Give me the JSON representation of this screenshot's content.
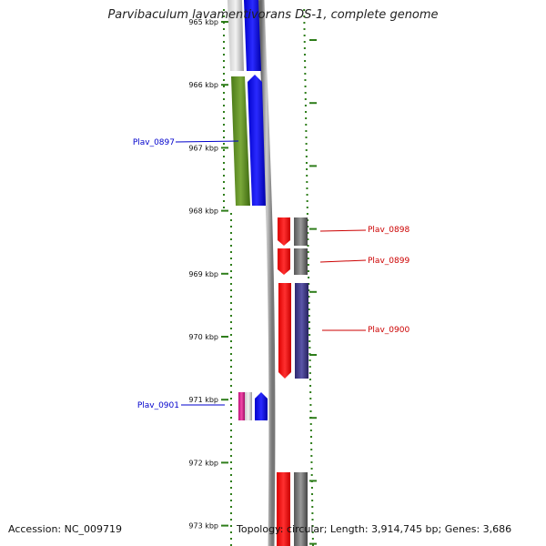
{
  "title": "Parvibaculum lavamentivorans DS-1, complete genome",
  "accession_text": "Accession: NC_009719",
  "topology_text": "Topology: circular; Length: 3,914,745 bp; Genes: 3,686",
  "ruler": {
    "unit": "kbp",
    "ticks": [
      "965 kbp",
      "966 kbp",
      "967 kbp",
      "968 kbp",
      "969 kbp",
      "970 kbp",
      "971 kbp",
      "972 kbp",
      "973 kbp"
    ]
  },
  "genes": [
    {
      "id": "Plav_0897",
      "strand": "forward",
      "label_color": "#0000cc",
      "colors": [
        "#5a8a1e",
        "#0000ff"
      ]
    },
    {
      "id": "Plav_0898",
      "strand": "reverse",
      "label_color": "#cc0000",
      "colors": [
        "#ff0000",
        "#666666"
      ]
    },
    {
      "id": "Plav_0899",
      "strand": "reverse",
      "label_color": "#cc0000",
      "colors": [
        "#ff0000",
        "#666666"
      ]
    },
    {
      "id": "Plav_0900",
      "strand": "reverse",
      "label_color": "#cc0000",
      "colors": [
        "#ff0000",
        "#3a3480"
      ]
    },
    {
      "id": "Plav_0901",
      "strand": "forward",
      "label_color": "#0000cc",
      "colors": [
        "#e0148a",
        "#0000ff"
      ]
    }
  ],
  "colors": {
    "tick_green": "#2e7d1a",
    "backbone": "#888888",
    "forward_label": "#0000cc",
    "reverse_label": "#cc0000"
  }
}
